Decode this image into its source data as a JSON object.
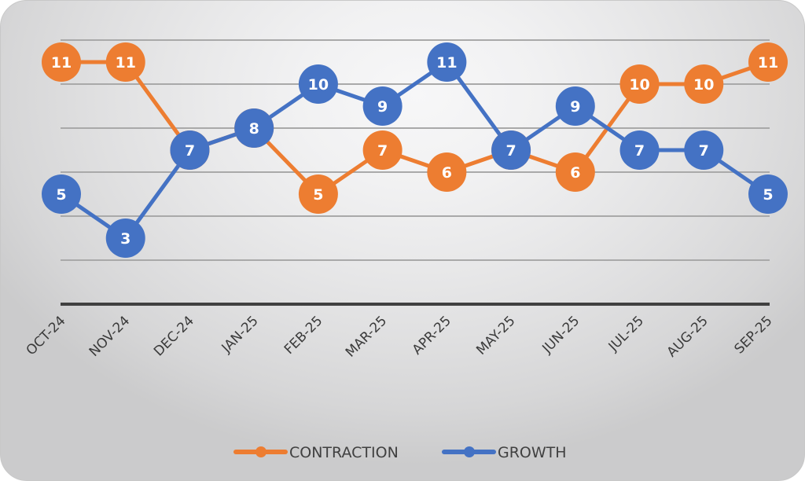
{
  "chart_data": {
    "type": "line",
    "title": "",
    "xlabel": "",
    "ylabel": "",
    "categories": [
      "OCT-24",
      "NOV-24",
      "DEC-24",
      "JAN-25",
      "FEB-25",
      "MAR-25",
      "APR-25",
      "MAY-25",
      "JUN-25",
      "JUL-25",
      "AUG-25",
      "SEP-25"
    ],
    "series": [
      {
        "name": "CONTRACTION",
        "color": "#ED7D31",
        "values": [
          11,
          11,
          7,
          8,
          5,
          7,
          6,
          7,
          6,
          10,
          10,
          11
        ]
      },
      {
        "name": "GROWTH",
        "color": "#4472C4",
        "values": [
          5,
          3,
          7,
          8,
          10,
          9,
          11,
          7,
          9,
          7,
          7,
          5
        ]
      }
    ],
    "ylim": [
      0,
      12
    ],
    "y_gridlines": [
      2,
      4,
      6,
      8,
      10,
      12
    ],
    "y_tick_labels_shown": false,
    "data_labels": true,
    "grid": true,
    "legend": {
      "position": "bottom",
      "entries": [
        "CONTRACTION",
        "GROWTH"
      ]
    }
  }
}
